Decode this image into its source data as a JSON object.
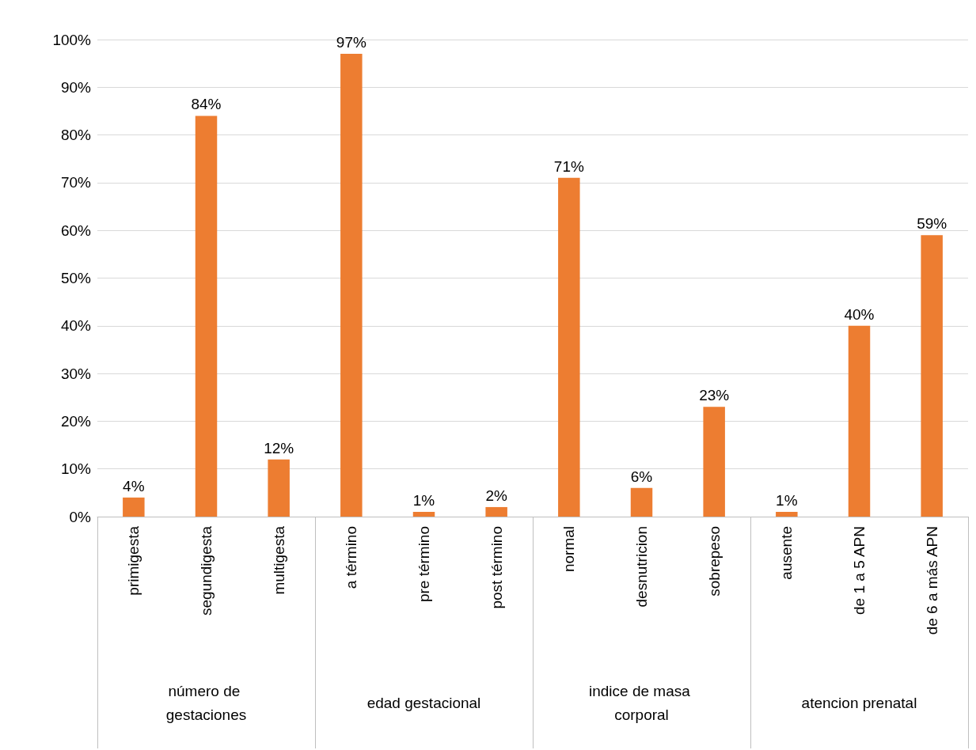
{
  "chart_data": {
    "type": "bar",
    "categories": [
      "primigesta",
      "segundigesta",
      "multigesta",
      "a término",
      "pre término",
      "post término",
      "normal",
      "desnutricion",
      "sobrepeso",
      "ausente",
      "de 1 a 5 APN",
      "de 6 a más APN"
    ],
    "values": [
      4,
      84,
      12,
      97,
      1,
      2,
      71,
      6,
      23,
      1,
      40,
      59
    ],
    "value_labels": [
      "4%",
      "84%",
      "12%",
      "97%",
      "1%",
      "2%",
      "71%",
      "6%",
      "23%",
      "1%",
      "40%",
      "59%"
    ],
    "color": "#ed7d31",
    "annotations": [
      "número de gestaciones",
      "edad gestacional",
      "indice de masa corporal",
      "atencion prenatal"
    ],
    "ylim": [
      0,
      100
    ],
    "yticks": [
      {
        "value": 0,
        "label": "0%"
      },
      {
        "value": 10,
        "label": "10%"
      },
      {
        "value": 20,
        "label": "20%"
      },
      {
        "value": 30,
        "label": "30%"
      },
      {
        "value": 40,
        "label": "40%"
      },
      {
        "value": 50,
        "label": "50%"
      },
      {
        "value": 60,
        "label": "60%"
      },
      {
        "value": 70,
        "label": "70%"
      },
      {
        "value": 80,
        "label": "80%"
      },
      {
        "value": 90,
        "label": "90%"
      },
      {
        "value": 100,
        "label": "100%"
      }
    ],
    "grid": true
  }
}
